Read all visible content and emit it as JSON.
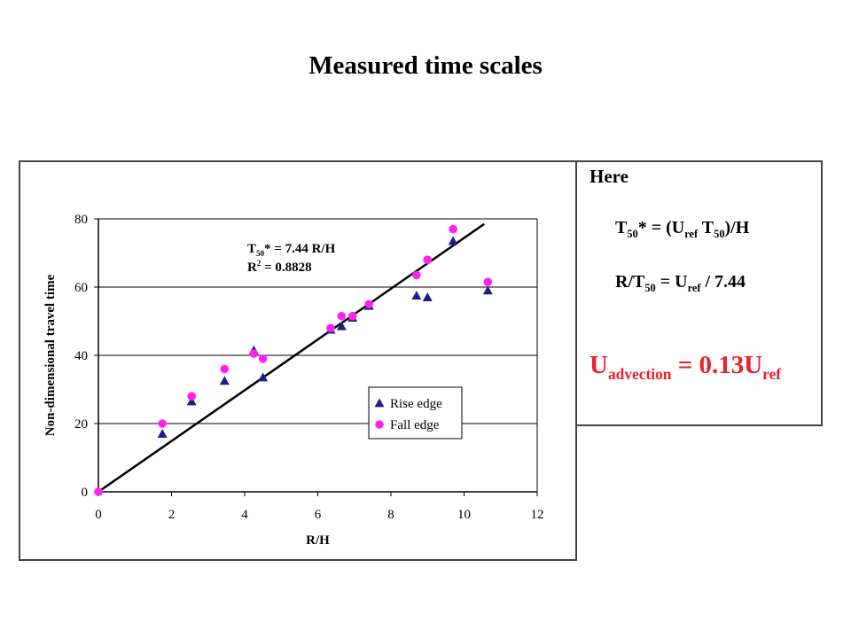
{
  "slide_title": "Measured time scales",
  "notes": {
    "heading": "Here",
    "eq1": {
      "p1": "T",
      "s1": "50",
      "p2": "* = (U",
      "s2": "ref",
      "p3": " T",
      "s3": "50",
      "p4": ")/H"
    },
    "eq2": {
      "p1": "R/T",
      "s1": "50",
      "p2": " = U",
      "s2": "ref",
      "p3": " / 7.44"
    },
    "eq3": {
      "p1": "U",
      "s1": "advection",
      "p2": " = 0.13U",
      "s2": "ref"
    },
    "eq3_color": "#e8222b"
  },
  "chart_data": {
    "type": "scatter",
    "title": "",
    "xlabel": "R/H",
    "ylabel": "Non-dimensional travel time",
    "xlim": [
      0,
      12
    ],
    "ylim": [
      0,
      80
    ],
    "xticks": [
      0,
      2,
      4,
      6,
      8,
      10,
      12
    ],
    "yticks": [
      0,
      20,
      40,
      60,
      80
    ],
    "grid": "horizontal",
    "legend_position": "lower-right",
    "fit_annotation": {
      "line1_a": "T",
      "line1_sub": "50",
      "line1_b": "* = 7.44 R/H",
      "line2_a": "R",
      "line2_sup": "2",
      "line2_b": " = 0.8828"
    },
    "fit_line": {
      "slope": 7.44,
      "x": [
        0,
        10.55
      ]
    },
    "series": [
      {
        "name": "Rise edge",
        "marker": "triangle",
        "color": "#1b1f8a",
        "points": [
          [
            1.75,
            17
          ],
          [
            2.55,
            26.5
          ],
          [
            3.45,
            32.5
          ],
          [
            4.25,
            41.5
          ],
          [
            4.5,
            33.5
          ],
          [
            6.35,
            47.5
          ],
          [
            6.65,
            48.5
          ],
          [
            6.95,
            51
          ],
          [
            7.4,
            54.5
          ],
          [
            8.7,
            57.5
          ],
          [
            9.0,
            57
          ],
          [
            9.7,
            73.5
          ],
          [
            10.65,
            59
          ]
        ]
      },
      {
        "name": "Fall edge",
        "marker": "circle",
        "color": "#ff22ee",
        "points": [
          [
            0,
            0
          ],
          [
            1.75,
            20
          ],
          [
            2.55,
            28
          ],
          [
            3.45,
            36
          ],
          [
            4.25,
            40.5
          ],
          [
            4.5,
            39
          ],
          [
            6.35,
            48
          ],
          [
            6.65,
            51.5
          ],
          [
            6.95,
            51.5
          ],
          [
            7.4,
            55
          ],
          [
            8.7,
            63.5
          ],
          [
            9.0,
            68
          ],
          [
            9.7,
            77
          ],
          [
            10.65,
            61.5
          ]
        ]
      }
    ]
  }
}
